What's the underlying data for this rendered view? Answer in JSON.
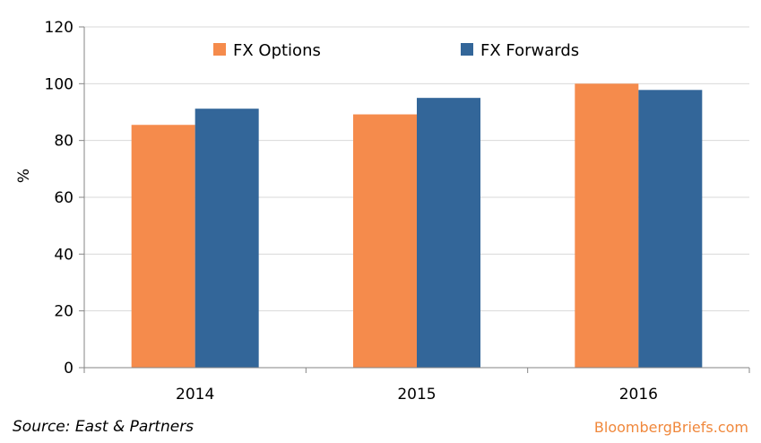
{
  "chart_data": {
    "type": "bar",
    "categories": [
      "2014",
      "2015",
      "2016"
    ],
    "series": [
      {
        "name": "FX Options",
        "values": [
          85.5,
          89.2,
          100
        ],
        "color": "#f58b4c"
      },
      {
        "name": "FX Forwards",
        "values": [
          91.2,
          95.0,
          97.8
        ],
        "color": "#336699"
      }
    ],
    "ylabel": "%",
    "ylim": [
      0,
      120
    ],
    "yticks": [
      0,
      20,
      40,
      60,
      80,
      100,
      120
    ],
    "grid": true,
    "legend": "top-center"
  },
  "footer": {
    "source": "Source: East & Partners",
    "brand": "BloombergBriefs.com"
  }
}
